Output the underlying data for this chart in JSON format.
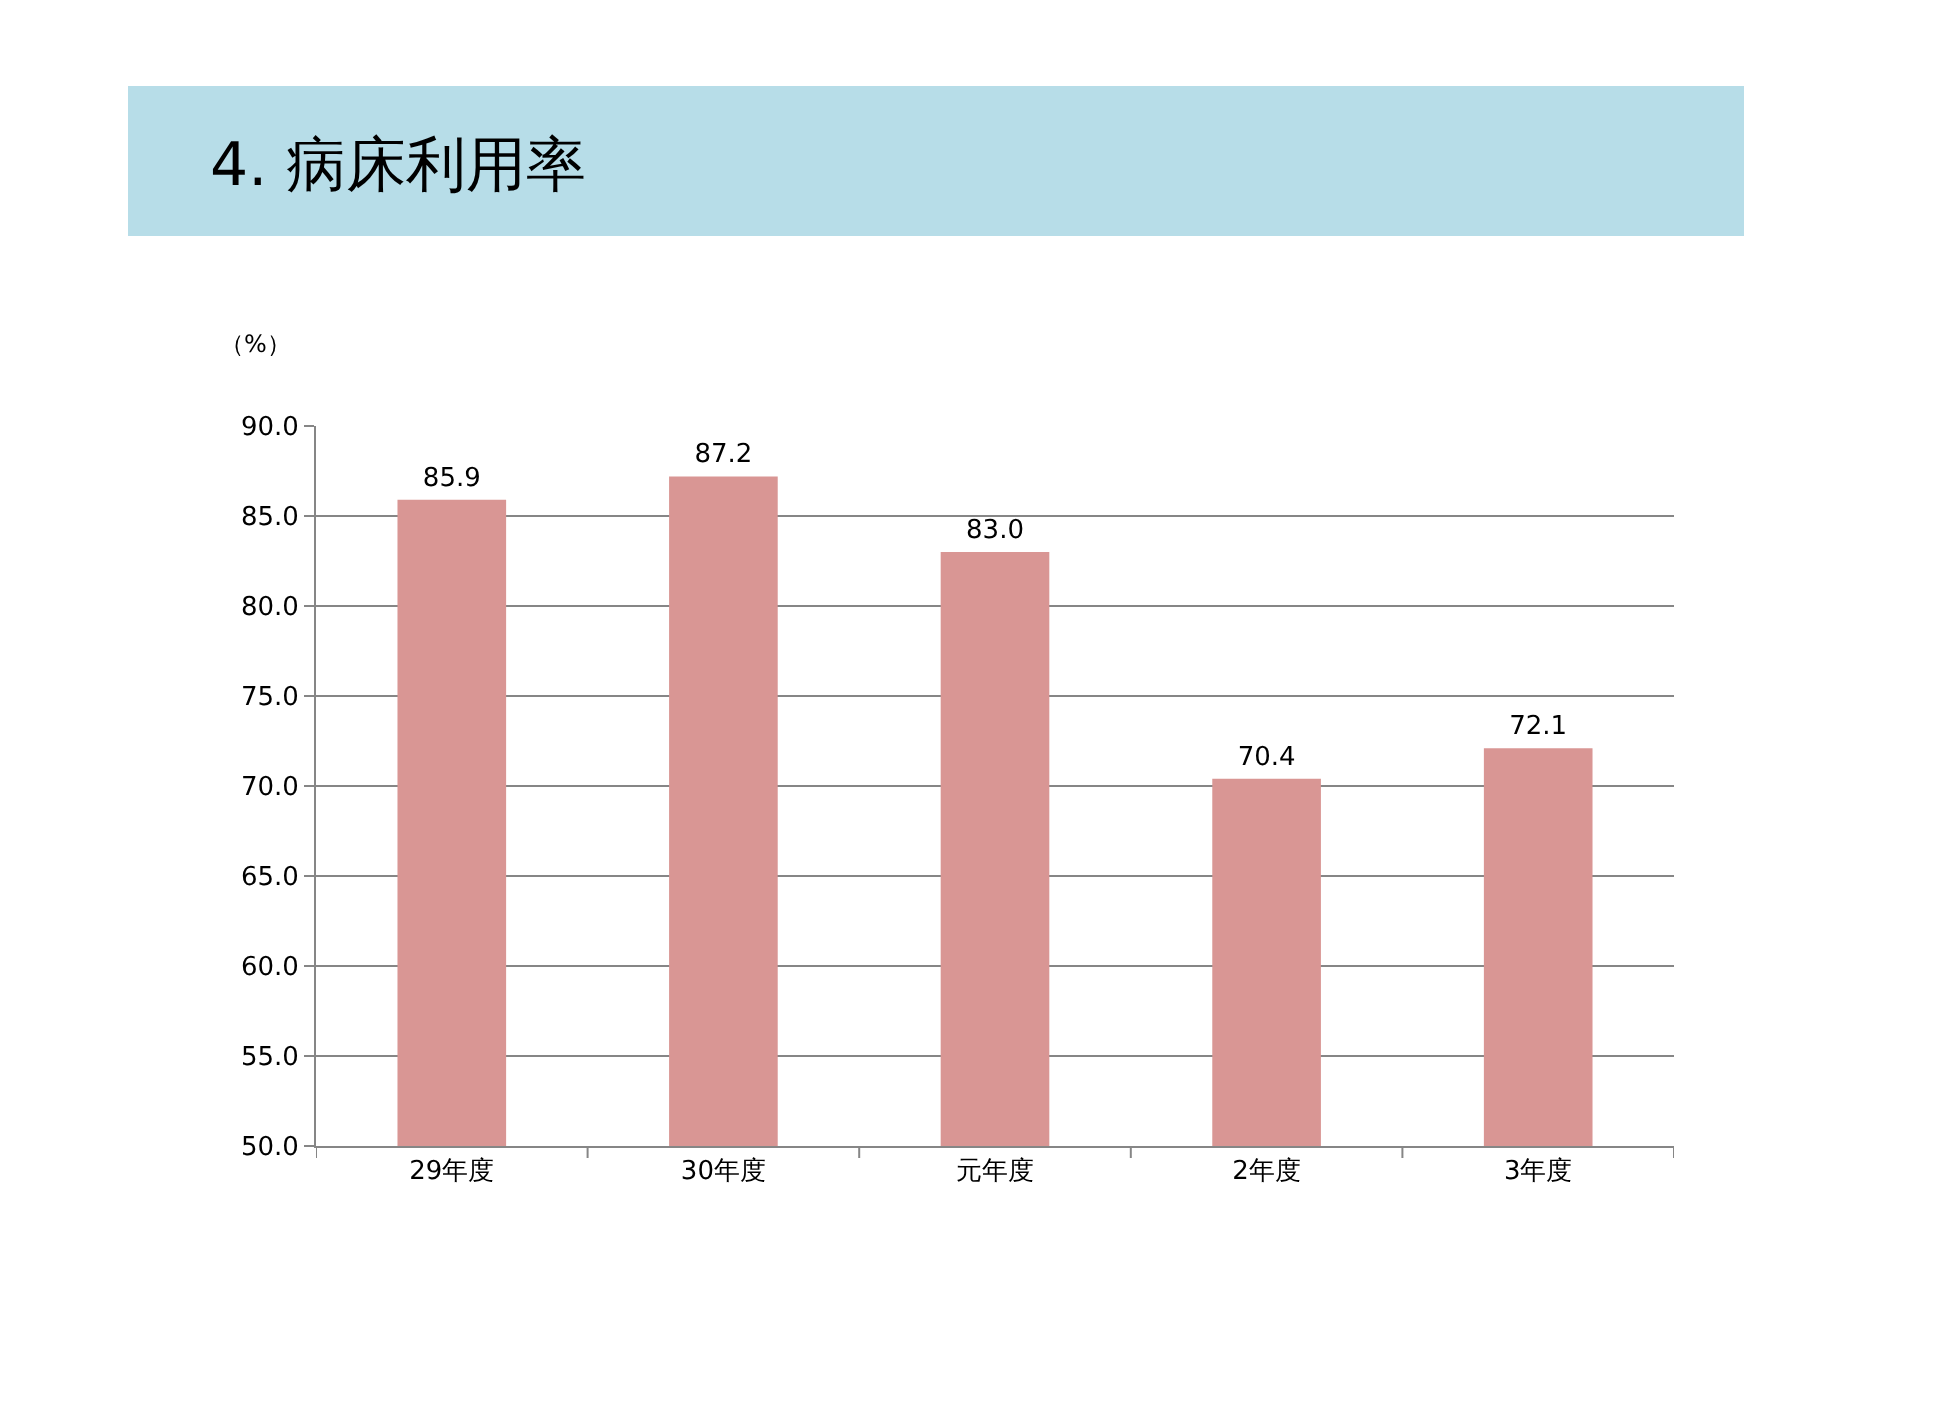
{
  "chart_data": {
    "type": "bar",
    "title": "4. 病床利用率",
    "ylabel": "（%）",
    "categories": [
      "29年度",
      "30年度",
      "元年度",
      "2年度",
      "3年度"
    ],
    "values": [
      85.9,
      87.2,
      83.0,
      70.4,
      72.1
    ],
    "value_labels": [
      "85.9",
      "87.2",
      "83.0",
      "70.4",
      "72.1"
    ],
    "color": "#d99694",
    "ylim": [
      50,
      90
    ],
    "yticks": [
      {
        "value": 50,
        "label": "50.0"
      },
      {
        "value": 55,
        "label": "55.0"
      },
      {
        "value": 60,
        "label": "60.0"
      },
      {
        "value": 65,
        "label": "65.0"
      },
      {
        "value": 70,
        "label": "70.0"
      },
      {
        "value": 75,
        "label": "75.0"
      },
      {
        "value": 80,
        "label": "80.0"
      },
      {
        "value": 85,
        "label": "85.0"
      },
      {
        "value": 90,
        "label": "90.0"
      }
    ],
    "grid": "y"
  }
}
